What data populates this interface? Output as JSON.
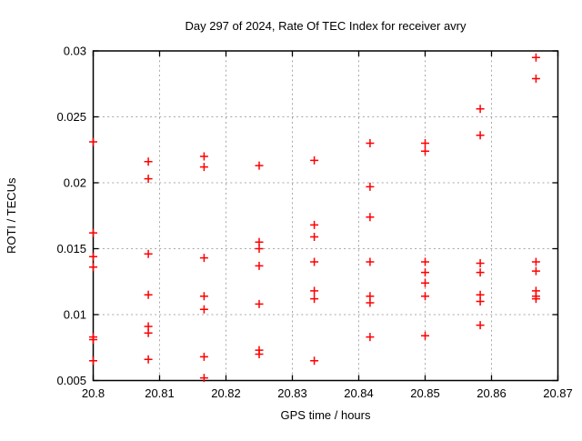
{
  "chart_data": {
    "type": "scatter",
    "title": "Day 297 of 2024, Rate Of TEC Index for receiver avry",
    "xlabel": "GPS time / hours",
    "ylabel": "ROTI / TECUs",
    "xlim": [
      20.8,
      20.87
    ],
    "ylim": [
      0.005,
      0.03
    ],
    "xticks": {
      "values": [
        20.8,
        20.81,
        20.82,
        20.83,
        20.84,
        20.85,
        20.86,
        20.87
      ],
      "labels": [
        "20.8",
        "20.81",
        "20.82",
        "20.83",
        "20.84",
        "20.85",
        "20.86",
        "20.87"
      ]
    },
    "yticks": {
      "values": [
        0.005,
        0.01,
        0.015,
        0.02,
        0.025,
        0.03
      ],
      "labels": [
        "0.005",
        "0.01",
        "0.015",
        "0.02",
        "0.025",
        "0.03"
      ]
    },
    "grid": true,
    "legend": "none",
    "marker": {
      "shape": "plus",
      "color": "#ff0000",
      "size": 9
    },
    "series": [
      {
        "name": "ROTI",
        "points": [
          [
            20.8,
            0.0231
          ],
          [
            20.8,
            0.0162
          ],
          [
            20.8,
            0.0144
          ],
          [
            20.8,
            0.0136
          ],
          [
            20.8,
            0.0083
          ],
          [
            20.8,
            0.0081
          ],
          [
            20.8,
            0.0065
          ],
          [
            20.8083,
            0.0216
          ],
          [
            20.8083,
            0.0203
          ],
          [
            20.8083,
            0.0146
          ],
          [
            20.8083,
            0.0115
          ],
          [
            20.8083,
            0.0091
          ],
          [
            20.8083,
            0.0086
          ],
          [
            20.8083,
            0.0066
          ],
          [
            20.8167,
            0.022
          ],
          [
            20.8167,
            0.0212
          ],
          [
            20.8167,
            0.0143
          ],
          [
            20.8167,
            0.0114
          ],
          [
            20.8167,
            0.0104
          ],
          [
            20.8167,
            0.0068
          ],
          [
            20.8167,
            0.0052
          ],
          [
            20.825,
            0.0213
          ],
          [
            20.825,
            0.0155
          ],
          [
            20.825,
            0.015
          ],
          [
            20.825,
            0.0137
          ],
          [
            20.825,
            0.0108
          ],
          [
            20.825,
            0.0073
          ],
          [
            20.825,
            0.007
          ],
          [
            20.8333,
            0.0217
          ],
          [
            20.8333,
            0.0168
          ],
          [
            20.8333,
            0.0159
          ],
          [
            20.8333,
            0.014
          ],
          [
            20.8333,
            0.0118
          ],
          [
            20.8333,
            0.0112
          ],
          [
            20.8333,
            0.0065
          ],
          [
            20.8417,
            0.023
          ],
          [
            20.8417,
            0.0197
          ],
          [
            20.8417,
            0.0174
          ],
          [
            20.8417,
            0.014
          ],
          [
            20.8417,
            0.0114
          ],
          [
            20.8417,
            0.0109
          ],
          [
            20.8417,
            0.0083
          ],
          [
            20.85,
            0.023
          ],
          [
            20.85,
            0.0224
          ],
          [
            20.85,
            0.014
          ],
          [
            20.85,
            0.0132
          ],
          [
            20.85,
            0.0124
          ],
          [
            20.85,
            0.0114
          ],
          [
            20.85,
            0.0084
          ],
          [
            20.8583,
            0.0256
          ],
          [
            20.8583,
            0.0236
          ],
          [
            20.8583,
            0.0139
          ],
          [
            20.8583,
            0.0132
          ],
          [
            20.8583,
            0.0115
          ],
          [
            20.8583,
            0.011
          ],
          [
            20.8583,
            0.0092
          ],
          [
            20.8667,
            0.0295
          ],
          [
            20.8667,
            0.0279
          ],
          [
            20.8667,
            0.014
          ],
          [
            20.8667,
            0.0133
          ],
          [
            20.8667,
            0.0118
          ],
          [
            20.8667,
            0.0114
          ],
          [
            20.8667,
            0.0112
          ]
        ]
      }
    ]
  },
  "colors": {
    "marker": "#ff0000",
    "grid": "#a8a8a8",
    "axis": "#000000",
    "background": "#ffffff",
    "text": "#000000"
  }
}
